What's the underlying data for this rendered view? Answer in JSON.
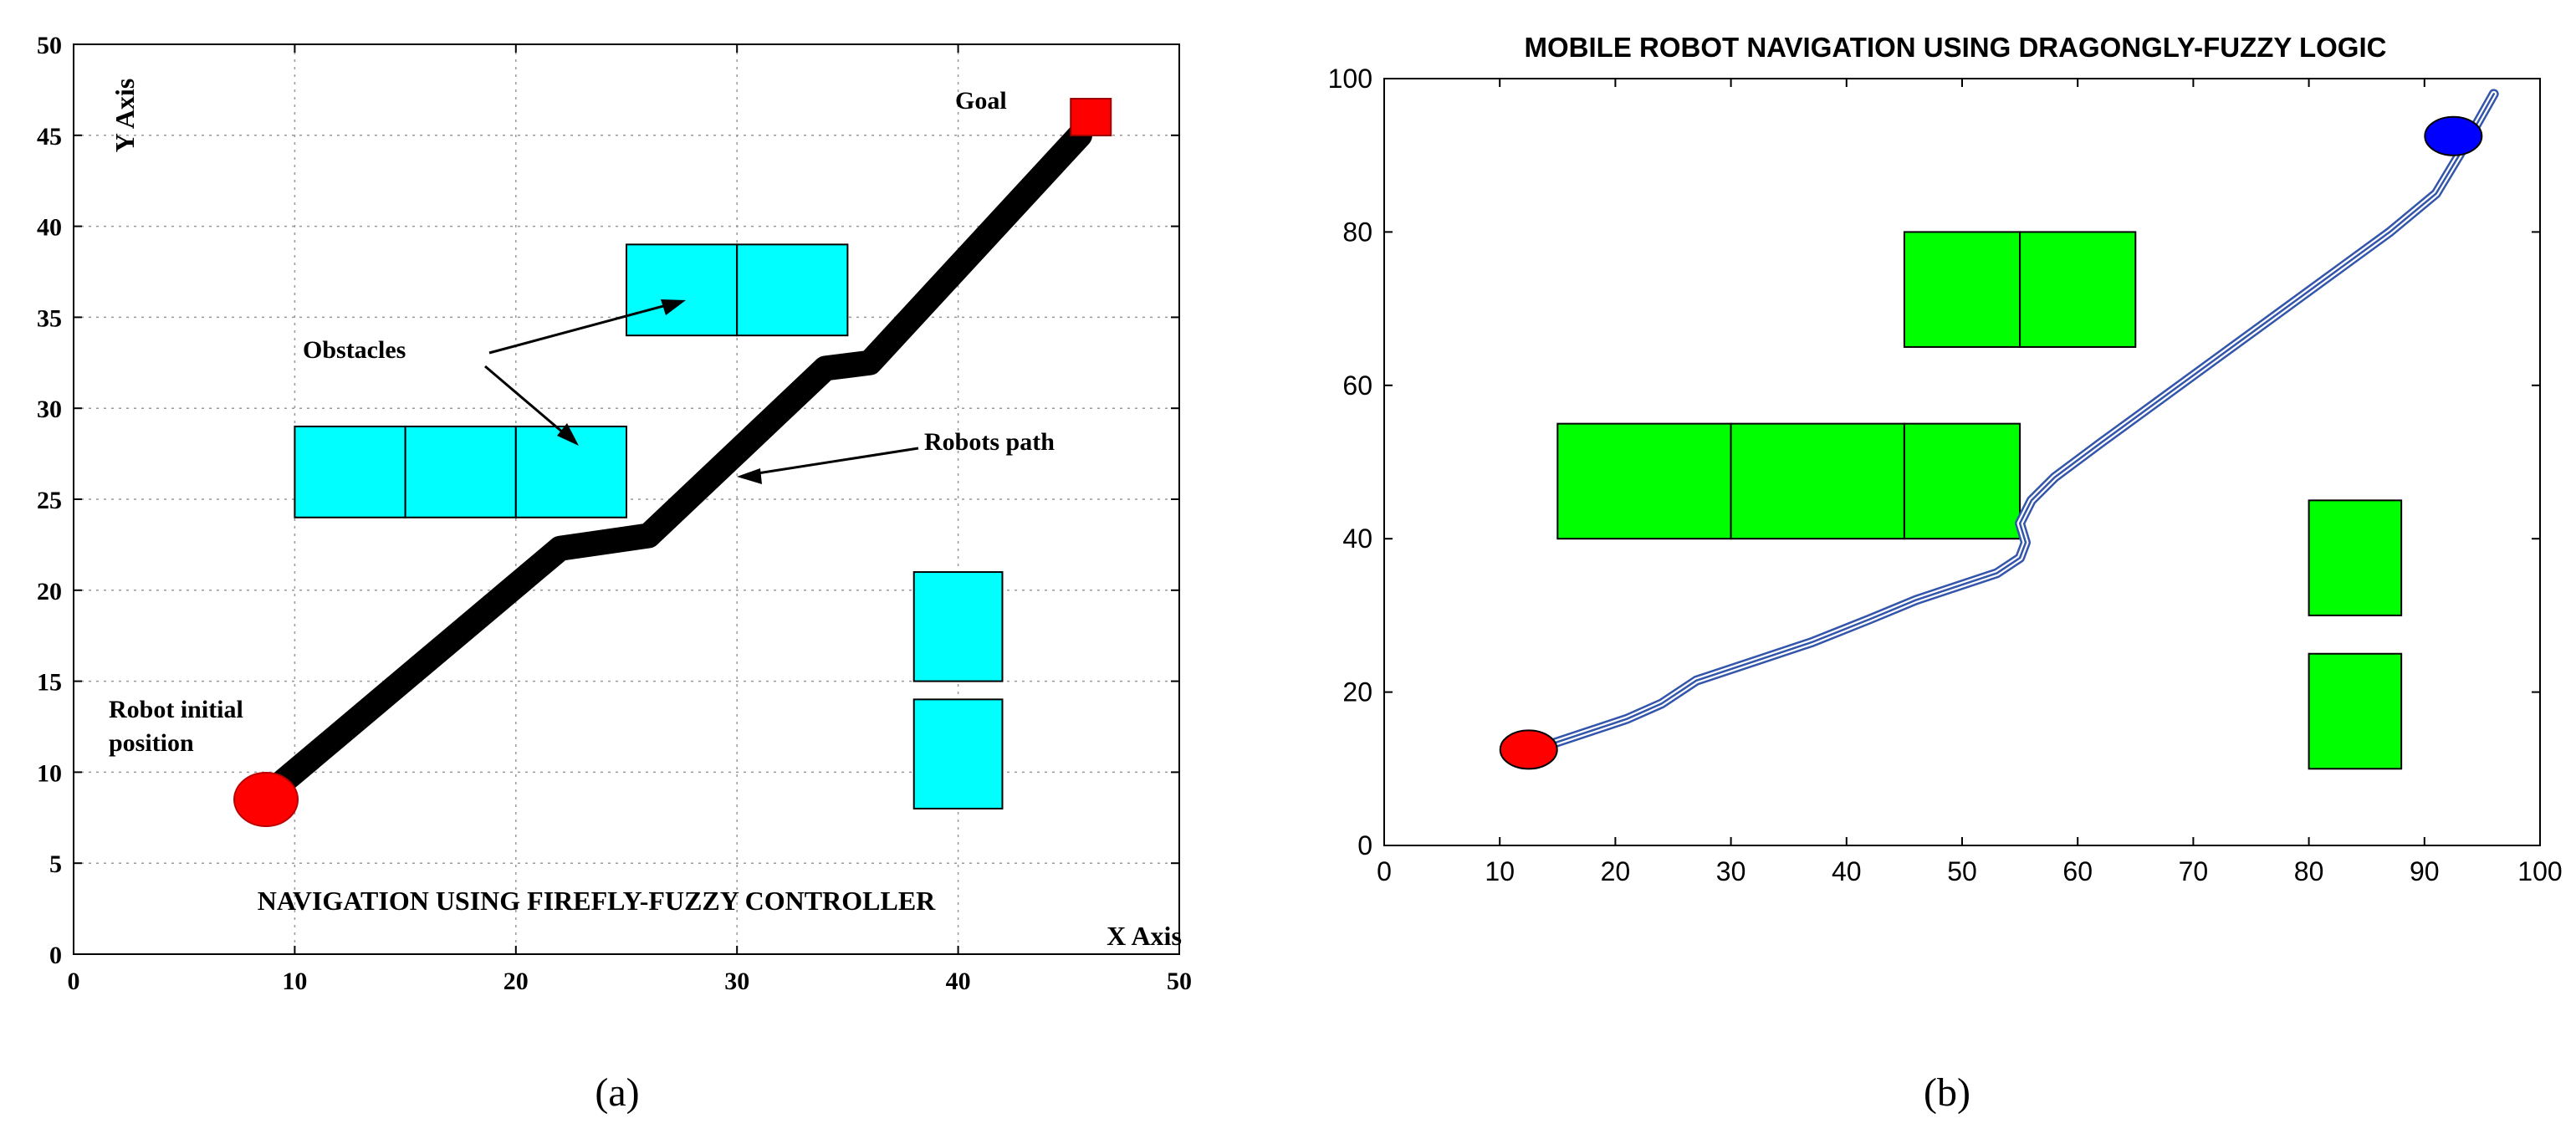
{
  "chart_data": [
    {
      "type": "line",
      "panel_label": "(a)",
      "title": "NAVIGATION USING FIREFLY-FUZZY CONTROLLER",
      "xlabel": "X Axis",
      "ylabel": "Y Axis",
      "xlim": [
        0,
        50
      ],
      "ylim": [
        0,
        50
      ],
      "xticks": [
        0,
        10,
        20,
        30,
        40,
        50
      ],
      "yticks": [
        0,
        5,
        10,
        15,
        20,
        25,
        30,
        35,
        40,
        45,
        50
      ],
      "grid": true,
      "colors": {
        "obstacle": "#00ffff",
        "path": "#000000",
        "start": "#ff0000",
        "goal": "#ff0000"
      },
      "obstacles": [
        {
          "x0": 10,
          "x1": 15,
          "y0": 24,
          "y1": 29
        },
        {
          "x0": 15,
          "x1": 20,
          "y0": 24,
          "y1": 29
        },
        {
          "x0": 20,
          "x1": 25,
          "y0": 24,
          "y1": 29
        },
        {
          "x0": 25,
          "x1": 30,
          "y0": 34,
          "y1": 39
        },
        {
          "x0": 30,
          "x1": 35,
          "y0": 34,
          "y1": 39
        },
        {
          "x0": 38,
          "x1": 42,
          "y0": 15,
          "y1": 21
        },
        {
          "x0": 38,
          "x1": 42,
          "y0": 8,
          "y1": 14
        }
      ],
      "path": {
        "x": [
          9,
          22,
          26,
          34,
          36,
          45.5
        ],
        "y": [
          9,
          22.3,
          23,
          32.2,
          32.5,
          45
        ]
      },
      "start": {
        "x": 8.7,
        "y": 8.5
      },
      "goal": {
        "x": 46,
        "y": 46
      },
      "annotations": {
        "goal": "Goal",
        "obstacles": "Obstacles",
        "robots_path": "Robots path",
        "start_line1": "Robot initial",
        "start_line2": "position"
      }
    },
    {
      "type": "line",
      "panel_label": "(b)",
      "title": "MOBILE ROBOT NAVIGATION USING DRAGONGLY-FUZZY LOGIC",
      "xlabel": "",
      "ylabel": "",
      "xlim": [
        0,
        100
      ],
      "ylim": [
        0,
        100
      ],
      "xticks": [
        0,
        10,
        20,
        30,
        40,
        50,
        60,
        70,
        80,
        90,
        100
      ],
      "yticks": [
        0,
        20,
        40,
        60,
        80,
        100
      ],
      "grid": false,
      "colors": {
        "obstacle": "#00ff00",
        "path": "#3355aa",
        "start": "#ff0000",
        "goal": "#0000ff"
      },
      "obstacles": [
        {
          "x0": 15,
          "x1": 30,
          "y0": 40,
          "y1": 55
        },
        {
          "x0": 30,
          "x1": 45,
          "y0": 40,
          "y1": 55
        },
        {
          "x0": 45,
          "x1": 55,
          "y0": 40,
          "y1": 55
        },
        {
          "x0": 45,
          "x1": 55,
          "y0": 65,
          "y1": 80
        },
        {
          "x0": 55,
          "x1": 65,
          "y0": 65,
          "y1": 80
        },
        {
          "x0": 80,
          "x1": 88,
          "y0": 30,
          "y1": 45
        },
        {
          "x0": 80,
          "x1": 88,
          "y0": 10,
          "y1": 25
        }
      ],
      "path": {
        "x": [
          12,
          15,
          18,
          21,
          24,
          27,
          32,
          37,
          42,
          46,
          50,
          53,
          55,
          55.5,
          55,
          56,
          58,
          62,
          67,
          72,
          77,
          82,
          87,
          91,
          93,
          96
        ],
        "y": [
          12,
          13.5,
          15,
          16.5,
          18.5,
          21.5,
          24,
          26.5,
          29.5,
          32,
          34,
          35.5,
          37.5,
          39.5,
          42,
          45,
          48,
          52.5,
          58,
          63.5,
          69,
          74.5,
          80,
          85,
          90,
          98
        ]
      },
      "start": {
        "x": 12.5,
        "y": 12.5
      },
      "goal": {
        "x": 92.5,
        "y": 92.5
      }
    }
  ]
}
